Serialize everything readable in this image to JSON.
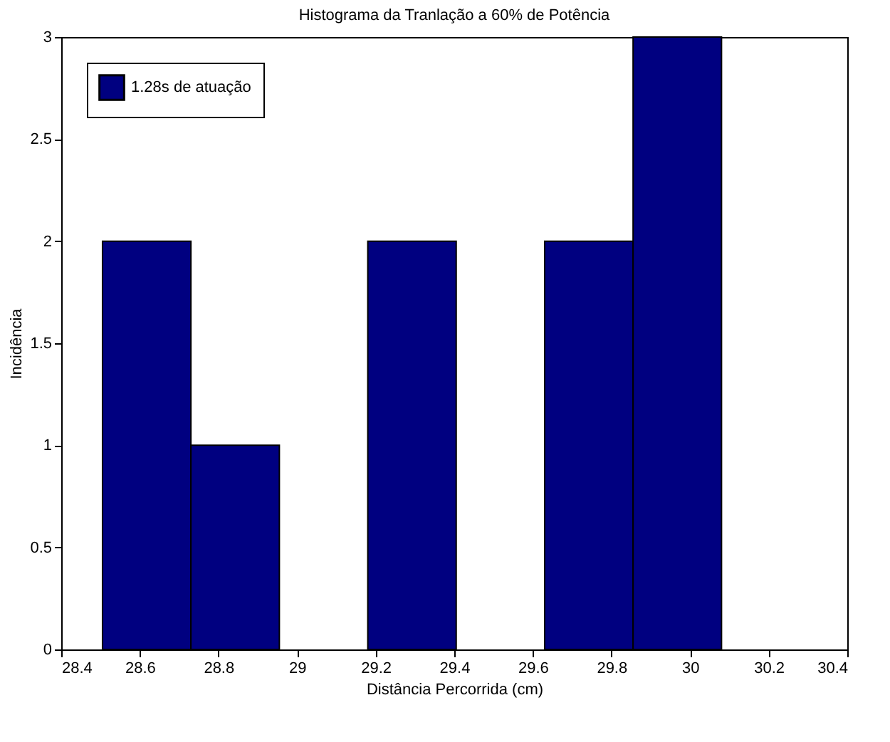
{
  "chart_data": {
    "type": "histogram",
    "title": "Histograma da Tranlação a 60% de Potência",
    "xlabel": "Distância Percorrida (cm)",
    "ylabel": "Incidência",
    "bins": [
      28.505,
      28.73,
      28.955,
      29.18,
      29.405,
      29.63,
      29.855,
      30.08
    ],
    "series": [
      {
        "name": "1.28s de atuação",
        "color": "#000080",
        "values": [
          2,
          1,
          0,
          2,
          0,
          2,
          3
        ]
      }
    ],
    "xlim": [
      28.4,
      30.4
    ],
    "xticks": [
      28.4,
      28.6,
      28.8,
      29,
      29.2,
      29.4,
      29.6,
      29.8,
      30,
      30.2,
      30.4
    ],
    "ylim": [
      0,
      3
    ],
    "yticks": [
      0,
      0.5,
      1,
      1.5,
      2,
      2.5,
      3
    ],
    "legend": "top left"
  }
}
